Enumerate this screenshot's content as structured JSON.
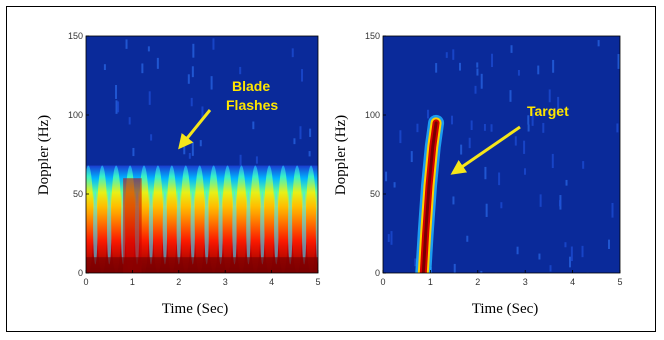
{
  "chart_data": [
    {
      "type": "heatmap",
      "xlabel": "Time (Sec)",
      "ylabel": "Doppler (Hz)",
      "xlim": [
        0,
        5
      ],
      "ylim": [
        0,
        150
      ],
      "xticks": [
        "0",
        "1",
        "2",
        "3",
        "4",
        "5"
      ],
      "yticks": [
        "0",
        "50",
        "100",
        "150"
      ],
      "colormap": "jet",
      "annotations": [
        {
          "text": "Blade",
          "arrow_to": [
            2.0,
            85
          ]
        },
        {
          "text": "Flashes"
        }
      ],
      "features": {
        "blade_flash_count": 17,
        "blade_flash_doppler_max": 68,
        "period_sec": 0.3
      }
    },
    {
      "type": "heatmap",
      "xlabel": "Time (Sec)",
      "ylabel": "Doppler (Hz)",
      "xlim": [
        0,
        5
      ],
      "ylim": [
        0,
        150
      ],
      "xticks": [
        "0",
        "1",
        "2",
        "3",
        "4",
        "5"
      ],
      "yticks": [
        "0",
        "50",
        "100",
        "150"
      ],
      "colormap": "jet",
      "annotations": [
        {
          "text": "Target",
          "arrow_to": [
            1.2,
            65
          ]
        }
      ],
      "features": {
        "target_track": [
          {
            "t": 0.85,
            "doppler": 0
          },
          {
            "t": 0.9,
            "doppler": 25
          },
          {
            "t": 0.97,
            "doppler": 55
          },
          {
            "t": 1.05,
            "doppler": 80
          },
          {
            "t": 1.12,
            "doppler": 95
          }
        ]
      }
    }
  ],
  "colors": {
    "background_blue": "#0a2a9a",
    "annotation_yellow": "#f5e61a",
    "annotation_text": "#ffe600"
  }
}
